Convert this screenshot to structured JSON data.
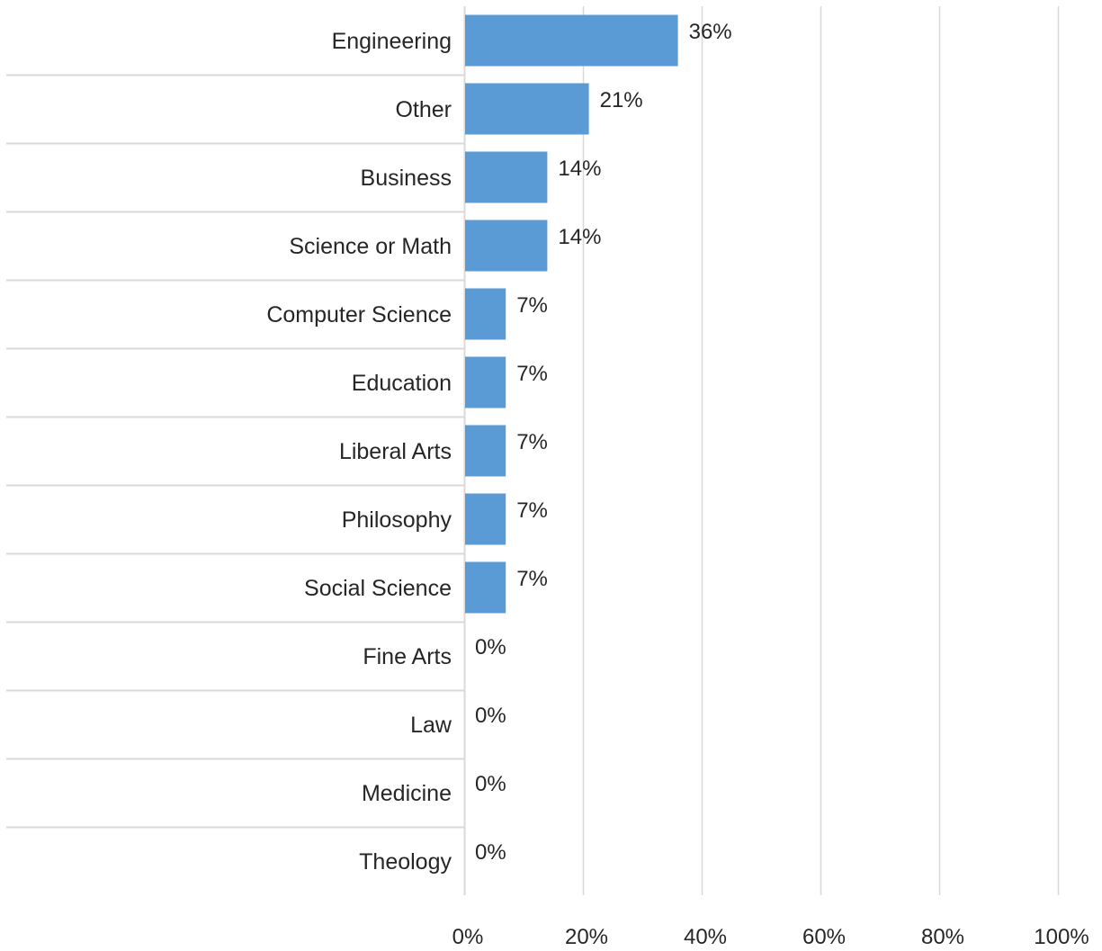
{
  "chart_data": {
    "type": "bar",
    "orientation": "horizontal",
    "title": "",
    "xlabel": "",
    "ylabel": "",
    "categories": [
      "Engineering",
      "Other",
      "Business",
      "Science or Math",
      "Computer Science",
      "Education",
      "Liberal Arts",
      "Philosophy",
      "Social Science",
      "Fine Arts",
      "Law",
      "Medicine",
      "Theology"
    ],
    "values": [
      36,
      21,
      14,
      14,
      7,
      7,
      7,
      7,
      7,
      0,
      0,
      0,
      0
    ],
    "data_labels": [
      "36%",
      "21%",
      "14%",
      "14%",
      "7%",
      "7%",
      "7%",
      "7%",
      "7%",
      "0%",
      "0%",
      "0%",
      "0%"
    ],
    "xlim": [
      0,
      100
    ],
    "x_ticks": [
      0,
      20,
      40,
      60,
      80,
      100
    ],
    "x_tick_labels": [
      "0%",
      "20%",
      "40%",
      "60%",
      "80%",
      "100%"
    ],
    "grid": "vertical",
    "legend": "none",
    "colors": {
      "bar": "#5b9bd5",
      "grid": "#d9d9d9",
      "text": "#262626"
    }
  }
}
